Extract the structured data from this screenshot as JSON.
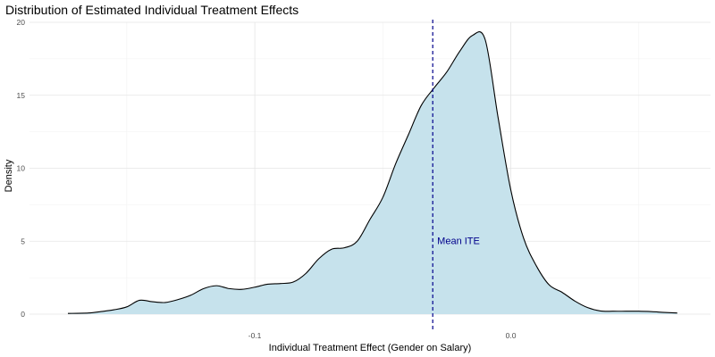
{
  "chart_data": {
    "type": "area",
    "title": "Distribution of Estimated Individual Treatment Effects",
    "xlabel": "Individual Treatment Effect (Gender on Salary)",
    "ylabel": "Density",
    "xlim": [
      -0.188,
      0.078
    ],
    "ylim": [
      0,
      20
    ],
    "x_ticks": [
      {
        "value": -0.1,
        "label": "-0.1"
      },
      {
        "value": 0.0,
        "label": "0.0"
      }
    ],
    "y_ticks": [
      {
        "value": 0,
        "label": "0"
      },
      {
        "value": 5,
        "label": "5"
      },
      {
        "value": 10,
        "label": "10"
      },
      {
        "value": 15,
        "label": "15"
      },
      {
        "value": 20,
        "label": "20"
      }
    ],
    "grid": true,
    "fill_color": "#c6e2ec",
    "line_color": "#000000",
    "reference_line": {
      "x": -0.0305,
      "label": "Mean ITE",
      "color": "#00008b",
      "style": "dashed"
    },
    "x": [
      -0.173,
      -0.165,
      -0.16,
      -0.155,
      -0.15,
      -0.145,
      -0.14,
      -0.135,
      -0.13,
      -0.125,
      -0.12,
      -0.115,
      -0.11,
      -0.105,
      -0.1,
      -0.095,
      -0.09,
      -0.085,
      -0.08,
      -0.075,
      -0.07,
      -0.065,
      -0.06,
      -0.055,
      -0.05,
      -0.045,
      -0.04,
      -0.035,
      -0.03,
      -0.025,
      -0.02,
      -0.015,
      -0.01,
      -0.005,
      0.0,
      0.005,
      0.01,
      0.015,
      0.02,
      0.025,
      0.03,
      0.035,
      0.04,
      0.045,
      0.05,
      0.055,
      0.06,
      0.065
    ],
    "y": [
      0.05,
      0.08,
      0.18,
      0.3,
      0.5,
      0.95,
      0.85,
      0.8,
      1.0,
      1.3,
      1.75,
      1.95,
      1.75,
      1.7,
      1.85,
      2.05,
      2.1,
      2.2,
      2.8,
      3.8,
      4.45,
      4.55,
      5.0,
      6.5,
      8.0,
      10.3,
      12.3,
      14.3,
      15.5,
      16.6,
      18.0,
      19.1,
      18.8,
      13.5,
      8.5,
      5.2,
      3.3,
      2.0,
      1.5,
      0.9,
      0.45,
      0.22,
      0.2,
      0.2,
      0.2,
      0.17,
      0.12,
      0.08
    ]
  }
}
